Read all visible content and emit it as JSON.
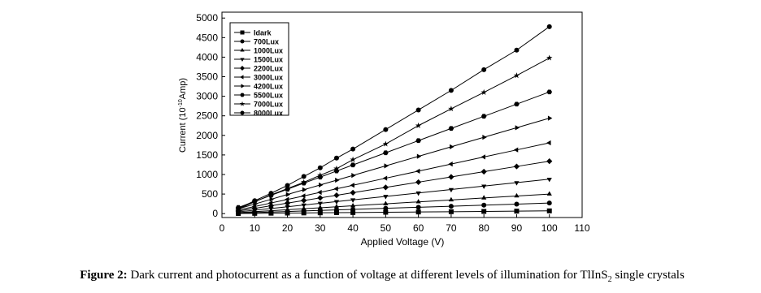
{
  "chart_data": {
    "type": "line",
    "x_label": "Applied Voltage (V)",
    "y_label": "Current (10",
    "y_label_sup": "-10",
    "y_label_end": "Amp)",
    "xlim": [
      0,
      110
    ],
    "xticks": [
      0,
      10,
      20,
      30,
      40,
      50,
      60,
      70,
      80,
      90,
      100,
      110
    ],
    "ylim": [
      -100,
      5150
    ],
    "yticks": [
      0,
      500,
      1000,
      1500,
      2000,
      2500,
      3000,
      3500,
      4000,
      4500,
      5000
    ],
    "legend": "upper left",
    "x": [
      5,
      10,
      15,
      20,
      25,
      30,
      35,
      40,
      50,
      60,
      70,
      80,
      90,
      100
    ],
    "series": [
      {
        "name": "Idark",
        "color": "#000000",
        "marker": "square",
        "values": [
          4,
          7,
          11,
          14,
          18,
          21,
          25,
          28,
          35,
          42,
          49,
          56,
          63,
          70
        ]
      },
      {
        "name": "700Lux",
        "color": "#000000",
        "marker": "circle",
        "values": [
          14,
          27,
          41,
          54,
          68,
          81,
          95,
          108,
          135,
          162,
          189,
          216,
          243,
          270
        ]
      },
      {
        "name": "1000Lux",
        "color": "#000000",
        "marker": "triangle-up",
        "values": [
          25,
          50,
          75,
          100,
          125,
          150,
          175,
          200,
          250,
          300,
          350,
          400,
          450,
          500
        ]
      },
      {
        "name": "1500Lux",
        "color": "#000000",
        "marker": "triangle-down",
        "values": [
          44,
          88,
          132,
          176,
          220,
          264,
          308,
          352,
          440,
          528,
          616,
          704,
          792,
          880
        ]
      },
      {
        "name": "2200Lux",
        "color": "#000000",
        "marker": "diamond",
        "values": [
          67,
          134,
          201,
          268,
          335,
          402,
          469,
          536,
          670,
          804,
          938,
          1072,
          1206,
          1340
        ]
      },
      {
        "name": "3000Lux",
        "color": "#000000",
        "marker": "triangle-left",
        "values": [
          91,
          181,
          272,
          362,
          453,
          543,
          634,
          724,
          905,
          1086,
          1267,
          1448,
          1629,
          1810
        ]
      },
      {
        "name": "4200Lux",
        "color": "#000000",
        "marker": "triangle-right",
        "values": [
          122,
          244,
          366,
          488,
          610,
          732,
          854,
          976,
          1220,
          1464,
          1708,
          1952,
          2196,
          2440
        ]
      },
      {
        "name": "5500Lux",
        "color": "#000000",
        "marker": "hexagon",
        "values": [
          156,
          311,
          467,
          622,
          778,
          933,
          1089,
          1244,
          1555,
          1866,
          2177,
          2488,
          2799,
          3110
        ]
      },
      {
        "name": "7000Lux",
        "color": "#000000",
        "marker": "star",
        "values": [
          120,
          300,
          480,
          640,
          800,
          980,
          1150,
          1380,
          1780,
          2250,
          2680,
          3100,
          3530,
          3980
        ]
      },
      {
        "name": "8000Lux",
        "color": "#000000",
        "marker": "circle",
        "values": [
          130,
          330,
          520,
          720,
          950,
          1170,
          1420,
          1650,
          2150,
          2650,
          3150,
          3680,
          4180,
          4780
        ]
      }
    ]
  },
  "caption": {
    "label": "Figure 2:",
    "text": " Dark current and photocurrent as a function of voltage at different levels of illumination for TlInS",
    "sub": "2",
    "end": " single crystals"
  }
}
